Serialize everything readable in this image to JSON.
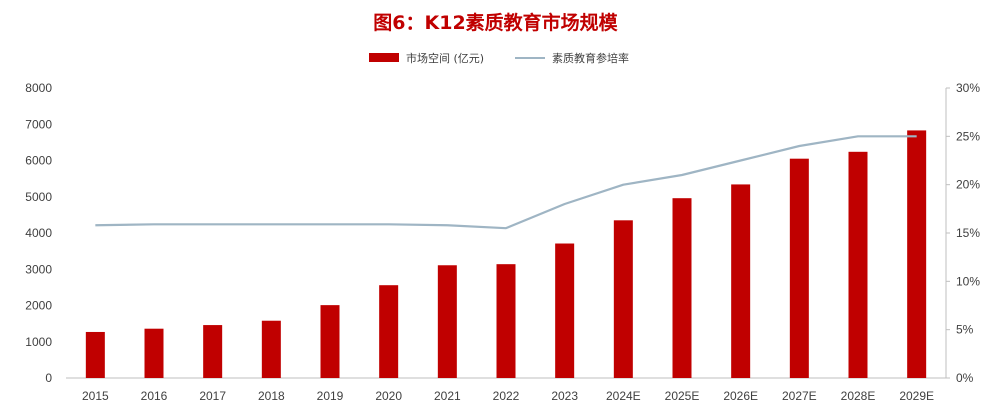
{
  "title": "图6：K12素质教育市场规模",
  "colors": {
    "bar": "#c00000",
    "line": "#9fb5c4",
    "title": "#c00000",
    "axis": "#bfbfbf",
    "text": "#404040"
  },
  "legend": {
    "bar_label": "市场空间 (亿元)",
    "line_label": "素质教育参培率",
    "placement": "top-center"
  },
  "chart_data": {
    "type": "bar+line",
    "categories": [
      "2015",
      "2016",
      "2017",
      "2018",
      "2019",
      "2020",
      "2021",
      "2022",
      "2023",
      "2024E",
      "2025E",
      "2026E",
      "2027E",
      "2028E",
      "2029E"
    ],
    "series": [
      {
        "name": "市场空间 (亿元)",
        "type": "bar",
        "axis": "left",
        "values": [
          1270,
          1360,
          1460,
          1580,
          2010,
          2560,
          3110,
          3140,
          3710,
          4350,
          4960,
          5340,
          6050,
          6240,
          6830
        ]
      },
      {
        "name": "素质教育参培率",
        "type": "line",
        "axis": "right",
        "values": [
          15.8,
          15.9,
          15.9,
          15.9,
          15.9,
          15.9,
          15.8,
          15.5,
          18.0,
          20.0,
          21.0,
          22.5,
          24.0,
          25.0,
          25.0
        ]
      }
    ],
    "y_left": {
      "min": 0,
      "max": 8000,
      "step": 1000,
      "tick_labels": [
        "0",
        "1000",
        "2000",
        "3000",
        "4000",
        "5000",
        "6000",
        "7000",
        "8000"
      ]
    },
    "y_right": {
      "min": 0,
      "max": 30,
      "step": 5,
      "tick_labels": [
        "0%",
        "5%",
        "10%",
        "15%",
        "20%",
        "25%",
        "30%"
      ]
    },
    "grid": false
  }
}
